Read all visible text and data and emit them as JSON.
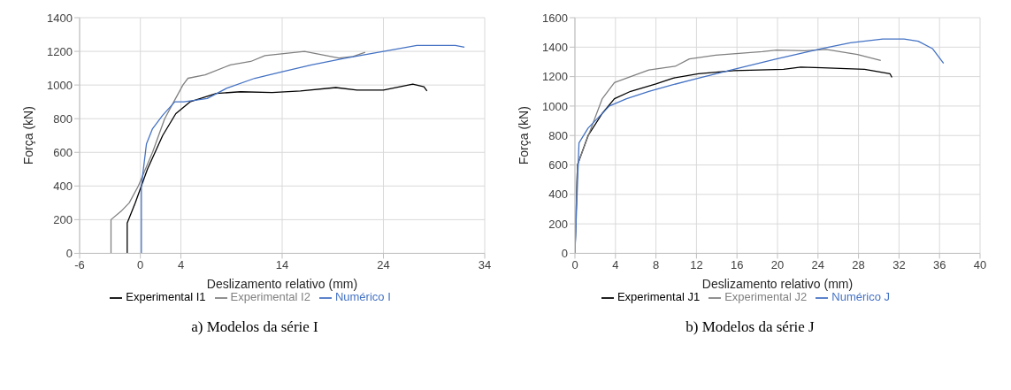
{
  "chart_data": [
    {
      "type": "line",
      "xlabel": "Deslizamento relativo (mm)",
      "ylabel": "Força (kN)",
      "xlim": [
        -6,
        34
      ],
      "xticks": [
        -6,
        0,
        4,
        14,
        24,
        34
      ],
      "ylim": [
        0,
        1400
      ],
      "yticks": [
        0,
        200,
        400,
        600,
        800,
        1000,
        1200,
        1400
      ],
      "grid": true,
      "legend": "bottom",
      "marker": "none",
      "annotations": [
        "a) Modelos da série I"
      ],
      "series": [
        {
          "name": "Experimental I1",
          "color": "#000000",
          "x": [
            -1.3,
            -1.3,
            -0.5,
            0.7,
            2.2,
            3.5,
            4.9,
            7.5,
            9.9,
            13,
            15.8,
            19.3,
            21.4,
            24,
            26.9,
            28,
            28.3
          ],
          "values": [
            0,
            180,
            300,
            500,
            700,
            830,
            900,
            950,
            960,
            955,
            965,
            985,
            970,
            970,
            1005,
            990,
            965
          ]
        },
        {
          "name": "Experimental I2",
          "color": "#808080",
          "x": [
            -2.9,
            -2.9,
            -1.9,
            -1.1,
            -0.2,
            1.2,
            2.4,
            3.3,
            4.2,
            4.7,
            6.4,
            8.9,
            10.9,
            12.3,
            16.2,
            19.6,
            21,
            22.2
          ],
          "values": [
            0,
            200,
            250,
            300,
            400,
            600,
            800,
            900,
            1000,
            1040,
            1060,
            1120,
            1140,
            1175,
            1200,
            1160,
            1170,
            1195
          ]
        },
        {
          "name": "Numérico I",
          "color": "#4472c4",
          "x": [
            0.1,
            0.1,
            0.6,
            1.2,
            2.2,
            3.4,
            4.3,
            6.6,
            8.5,
            11.3,
            14.1,
            16.9,
            20.3,
            24,
            27.3,
            31.1,
            32
          ],
          "values": [
            0,
            400,
            650,
            740,
            820,
            900,
            900,
            920,
            980,
            1040,
            1080,
            1120,
            1160,
            1200,
            1235,
            1235,
            1225
          ]
        }
      ]
    },
    {
      "type": "line",
      "xlabel": "Deslizamento relativo (mm)",
      "ylabel": "Força (kN)",
      "xlim": [
        0,
        40
      ],
      "xticks": [
        0,
        4,
        8,
        12,
        16,
        20,
        24,
        28,
        32,
        36,
        40
      ],
      "ylim": [
        0,
        1600
      ],
      "yticks": [
        0,
        200,
        400,
        600,
        800,
        1000,
        1200,
        1400,
        1600
      ],
      "grid": true,
      "legend": "bottom",
      "marker": "none",
      "annotations": [
        "b) Modelos da série J"
      ],
      "series": [
        {
          "name": "Experimental J1",
          "color": "#000000",
          "x": [
            0,
            0.25,
            1.3,
            2.7,
            3.9,
            5.5,
            8,
            9.7,
            12.2,
            15.7,
            20.6,
            22.3,
            24.4,
            28.6,
            31.1,
            31.3
          ],
          "values": [
            0,
            600,
            800,
            950,
            1050,
            1100,
            1150,
            1190,
            1220,
            1240,
            1250,
            1265,
            1260,
            1250,
            1220,
            1195
          ]
        },
        {
          "name": "Experimental J2",
          "color": "#808080",
          "x": [
            0,
            0.25,
            1.6,
            2.7,
            3.9,
            5.5,
            7.3,
            9.9,
            11.3,
            13.9,
            18.5,
            19.9,
            22.7,
            24.8,
            27.9,
            30.2
          ],
          "values": [
            0,
            600,
            850,
            1050,
            1160,
            1200,
            1245,
            1270,
            1320,
            1345,
            1370,
            1380,
            1375,
            1385,
            1350,
            1310
          ]
        },
        {
          "name": "Numérico J",
          "color": "#4472c4",
          "x": [
            0,
            0.4,
            1.3,
            3.4,
            5.1,
            7.3,
            9.4,
            12.2,
            15.7,
            19.9,
            24.4,
            27.2,
            30.4,
            32.5,
            33.9,
            35.3,
            36.4
          ],
          "values": [
            0,
            750,
            850,
            1000,
            1050,
            1100,
            1140,
            1190,
            1250,
            1320,
            1390,
            1430,
            1455,
            1455,
            1440,
            1390,
            1290
          ]
        }
      ]
    }
  ]
}
